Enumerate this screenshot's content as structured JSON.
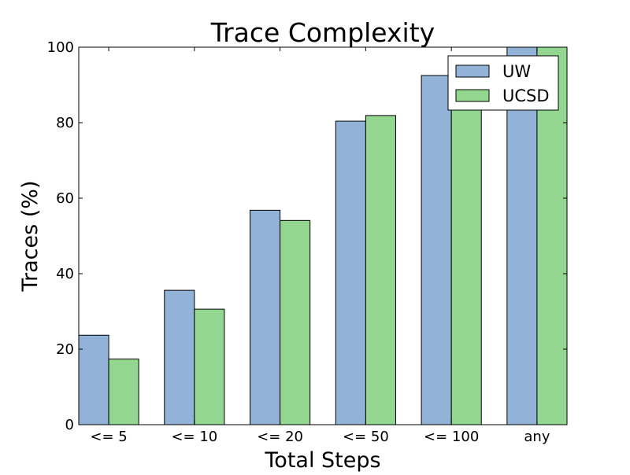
{
  "chart_data": {
    "type": "bar",
    "title": "Trace Complexity",
    "xlabel": "Total Steps",
    "ylabel": "Traces (%)",
    "categories": [
      "<= 5",
      "<= 10",
      "<= 20",
      "<= 50",
      "<= 100",
      "any"
    ],
    "series": [
      {
        "name": "UW",
        "values": [
          23.7,
          35.6,
          56.8,
          80.4,
          92.5,
          100
        ],
        "color": "#92b2d7"
      },
      {
        "name": "UCSD",
        "values": [
          17.4,
          30.6,
          54.1,
          81.9,
          96.3,
          100
        ],
        "color": "#92d690"
      }
    ],
    "ylim": [
      0,
      100
    ],
    "yticks": [
      "0",
      "20",
      "40",
      "60",
      "80",
      "100"
    ],
    "grid": false,
    "legend_position": "top-right"
  }
}
